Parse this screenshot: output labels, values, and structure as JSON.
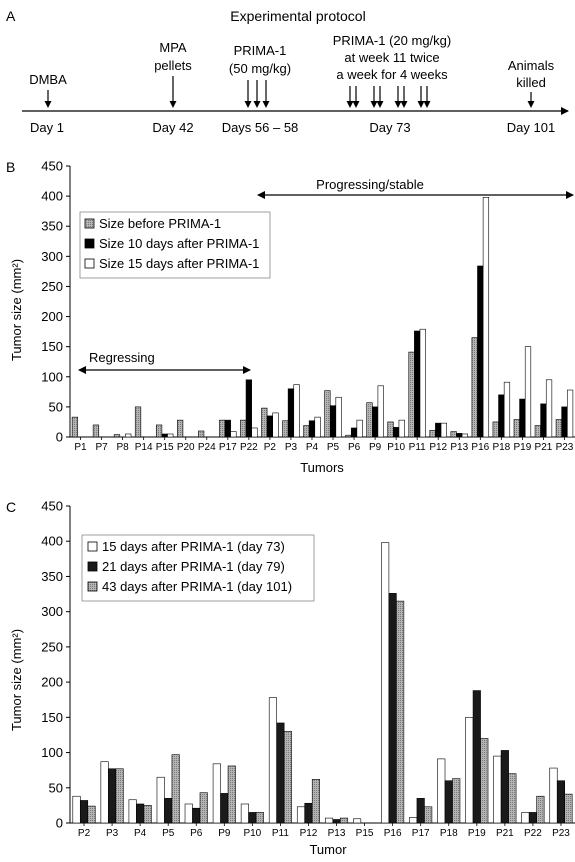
{
  "figure": {
    "panel_labels": [
      "A",
      "B",
      "C"
    ]
  },
  "protocol": {
    "title": "Experimental protocol",
    "events": [
      {
        "top": [
          "DMBA"
        ],
        "day": "Day 1",
        "arrows": 1
      },
      {
        "top": [
          "MPA",
          "pellets"
        ],
        "day": "Day 42",
        "arrows": 1
      },
      {
        "top": [
          "PRIMA-1",
          "(50 mg/kg)"
        ],
        "day": "Days 56 – 58",
        "arrows": 3
      },
      {
        "top": [
          "PRIMA-1 (20 mg/kg)",
          "at week 11 twice",
          "a week for 4 weeks"
        ],
        "day": "Day 73",
        "arrows": 8
      },
      {
        "top": [
          "Animals",
          "killed"
        ],
        "day": "Day 101",
        "arrows": 1
      }
    ]
  },
  "chart_data": [
    {
      "type": "bar",
      "panel": "B",
      "xlabel": "Tumors",
      "ylabel": "Tumor size (mm²)",
      "ylim": [
        0,
        450
      ],
      "yticks": [
        0,
        50,
        100,
        150,
        200,
        250,
        300,
        350,
        400,
        450
      ],
      "legend_position": "upper-left",
      "categories": [
        "P1",
        "P7",
        "P8",
        "P14",
        "P15",
        "P20",
        "P24",
        "P17",
        "P22",
        "P2",
        "P3",
        "P4",
        "P5",
        "P6",
        "P9",
        "P10",
        "P11",
        "P12",
        "P13",
        "P16",
        "P18",
        "P19",
        "P21",
        "P23"
      ],
      "series": [
        {
          "name": "Size before PRIMA-1",
          "color": "#a6a6a6",
          "values": [
            33,
            20,
            4,
            50,
            20,
            28,
            10,
            28,
            28,
            48,
            27,
            19,
            77,
            3,
            57,
            25,
            141,
            11,
            9,
            165,
            25,
            29,
            19,
            29
          ]
        },
        {
          "name": "Size 10 days after PRIMA-1",
          "color": "#000000",
          "values": [
            0,
            0,
            0,
            0,
            5,
            0,
            0,
            28,
            95,
            35,
            80,
            27,
            52,
            15,
            50,
            16,
            176,
            23,
            6,
            284,
            70,
            63,
            55,
            50
          ]
        },
        {
          "name": "Size 15 days after PRIMA-1",
          "color": "#ffffff",
          "values": [
            0,
            0,
            5,
            0,
            5,
            0,
            0,
            9,
            15,
            40,
            87,
            33,
            66,
            28,
            85,
            28,
            179,
            23,
            5,
            398,
            91,
            150,
            95,
            78
          ]
        }
      ],
      "annotations": [
        {
          "text": "Regressing",
          "from": "P1",
          "to": "P22"
        },
        {
          "text": "Progressing/stable",
          "from": "P22",
          "to": "P23"
        }
      ]
    },
    {
      "type": "bar",
      "panel": "C",
      "xlabel": "Tumor",
      "ylabel": "Tumor size (mm²)",
      "ylim": [
        0,
        450
      ],
      "yticks": [
        0,
        50,
        100,
        150,
        200,
        250,
        300,
        350,
        400,
        450
      ],
      "legend_position": "upper-left",
      "categories": [
        "P2",
        "P3",
        "P4",
        "P5",
        "P6",
        "P9",
        "P10",
        "P11",
        "P12",
        "P13",
        "P15",
        "P16",
        "P17",
        "P18",
        "P19",
        "P21",
        "P22",
        "P23"
      ],
      "series": [
        {
          "name": "15 days after PRIMA-1 (day 73)",
          "color": "#ffffff",
          "values": [
            38,
            87,
            33,
            65,
            27,
            84,
            27,
            178,
            23,
            7,
            6,
            398,
            8,
            91,
            150,
            95,
            15,
            78
          ]
        },
        {
          "name": "21 days after PRIMA-1 (day 79)",
          "color": "#1a1a1a",
          "values": [
            32,
            77,
            27,
            35,
            21,
            42,
            15,
            142,
            28,
            5,
            0,
            326,
            35,
            60,
            188,
            103,
            15,
            60
          ]
        },
        {
          "name": "43 days after PRIMA-1 (day 101)",
          "color": "#a6a6a6",
          "values": [
            24,
            77,
            25,
            97,
            43,
            81,
            15,
            130,
            62,
            7,
            0,
            315,
            23,
            63,
            120,
            70,
            38,
            41
          ]
        }
      ]
    }
  ]
}
